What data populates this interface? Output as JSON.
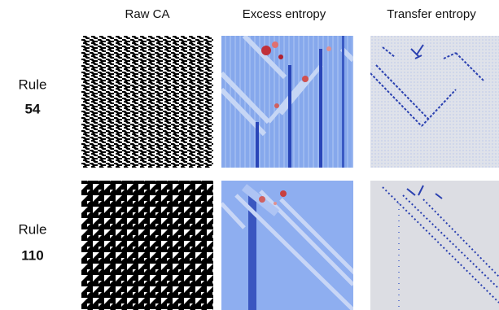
{
  "columns": [
    "Raw CA",
    "Excess entropy",
    "Transfer entropy"
  ],
  "rows": [
    {
      "label": "Rule",
      "rule": "54"
    },
    {
      "label": "Rule",
      "rule": "110"
    }
  ]
}
